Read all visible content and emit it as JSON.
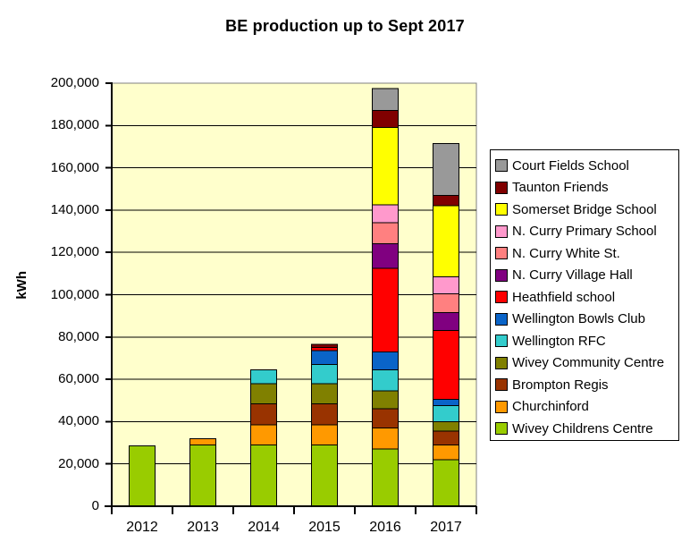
{
  "chart_data": {
    "type": "bar",
    "stacked": true,
    "title": "BE production up to Sept 2017",
    "ylabel": "kWh",
    "xlabel": "",
    "categories": [
      "2012",
      "2013",
      "2014",
      "2015",
      "2016",
      "2017"
    ],
    "ylim": [
      0,
      200000
    ],
    "ytick_step": 20000,
    "ytick_labels": [
      "0",
      "20,000",
      "40,000",
      "60,000",
      "80,000",
      "100,000",
      "120,000",
      "140,000",
      "160,000",
      "180,000",
      "200,000"
    ],
    "grid": true,
    "legend_position": "right",
    "plot_bg_color": "#FFFFCC",
    "gridline_color": "#000000",
    "series_stack_order": "bottom_to_top",
    "series": [
      {
        "name": "Wivey Childrens Centre",
        "color": "#99CC00",
        "values": [
          28500,
          29000,
          29000,
          29000,
          27000,
          22000
        ]
      },
      {
        "name": "Churchinford",
        "color": "#FF9900",
        "values": [
          0,
          3000,
          9500,
          9500,
          10000,
          7000
        ]
      },
      {
        "name": "Brompton Regis",
        "color": "#993300",
        "values": [
          0,
          0,
          10000,
          10000,
          9000,
          6500
        ]
      },
      {
        "name": "Wivey Community Centre",
        "color": "#808000",
        "values": [
          0,
          0,
          9500,
          9500,
          8500,
          4500
        ]
      },
      {
        "name": "Wellington RFC",
        "color": "#33CCCC",
        "values": [
          0,
          0,
          6500,
          9000,
          10000,
          7500
        ]
      },
      {
        "name": "Wellington Bowls Club",
        "color": "#0A64C8",
        "values": [
          0,
          0,
          0,
          6500,
          8500,
          3000
        ]
      },
      {
        "name": "Heathfield school",
        "color": "#FF0000",
        "values": [
          0,
          0,
          0,
          1500,
          39500,
          32500
        ]
      },
      {
        "name": "N. Curry Village Hall",
        "color": "#800080",
        "values": [
          0,
          0,
          0,
          0,
          11500,
          8500
        ]
      },
      {
        "name": "N. Curry White St.",
        "color": "#FF8080",
        "values": [
          0,
          0,
          0,
          0,
          10000,
          9000
        ]
      },
      {
        "name": "N. Curry Primary School",
        "color": "#FF99CC",
        "values": [
          0,
          0,
          0,
          0,
          8500,
          8000
        ]
      },
      {
        "name": "Somerset Bridge School",
        "color": "#FFFF00",
        "values": [
          0,
          0,
          0,
          0,
          36500,
          33500
        ]
      },
      {
        "name": "Taunton Friends",
        "color": "#800000",
        "values": [
          0,
          0,
          0,
          1500,
          8000,
          5000
        ]
      },
      {
        "name": "Court Fields School",
        "color": "#999999",
        "values": [
          0,
          0,
          0,
          0,
          10500,
          24500
        ]
      }
    ]
  }
}
